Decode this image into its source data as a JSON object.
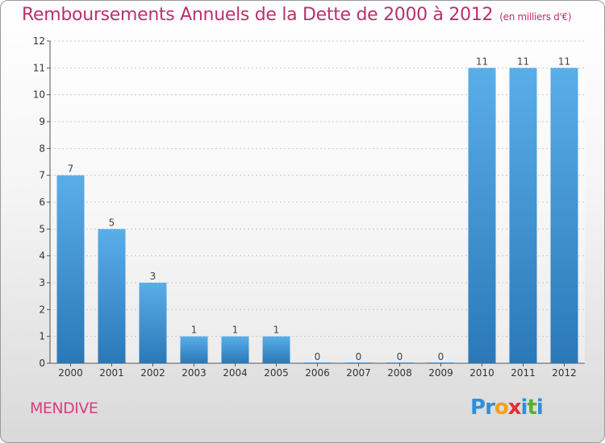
{
  "header": {
    "title": "Remboursements Annuels de la Dette de 2000 à 2012",
    "unit": "(en milliers d'€)"
  },
  "footer": {
    "town": "MENDIVE",
    "logo_letters": [
      "P",
      "r",
      "o",
      "x",
      "i",
      "t",
      "i"
    ]
  },
  "colors": {
    "bar_top": "#5aaee8",
    "bar_bottom": "#2a78b8",
    "title": "#b8326c",
    "logo": [
      "#2f8fd8",
      "#2f8fd8",
      "#f0a020",
      "#e03030",
      "#2f8fd8",
      "#58b030",
      "#2f8fd8"
    ]
  },
  "chart_data": {
    "type": "bar",
    "title": "Remboursements Annuels de la Dette de 2000 à 2012",
    "xlabel": "",
    "ylabel": "",
    "categories": [
      "2000",
      "2001",
      "2002",
      "2003",
      "2004",
      "2005",
      "2006",
      "2007",
      "2008",
      "2009",
      "2010",
      "2011",
      "2012"
    ],
    "values": [
      7,
      5,
      3,
      1,
      1,
      1,
      0,
      0,
      0,
      0,
      11,
      11,
      11
    ],
    "ylim": [
      0,
      12
    ],
    "yticks": [
      0,
      1,
      2,
      3,
      4,
      5,
      6,
      7,
      8,
      9,
      10,
      11,
      12
    ],
    "grid": true
  }
}
